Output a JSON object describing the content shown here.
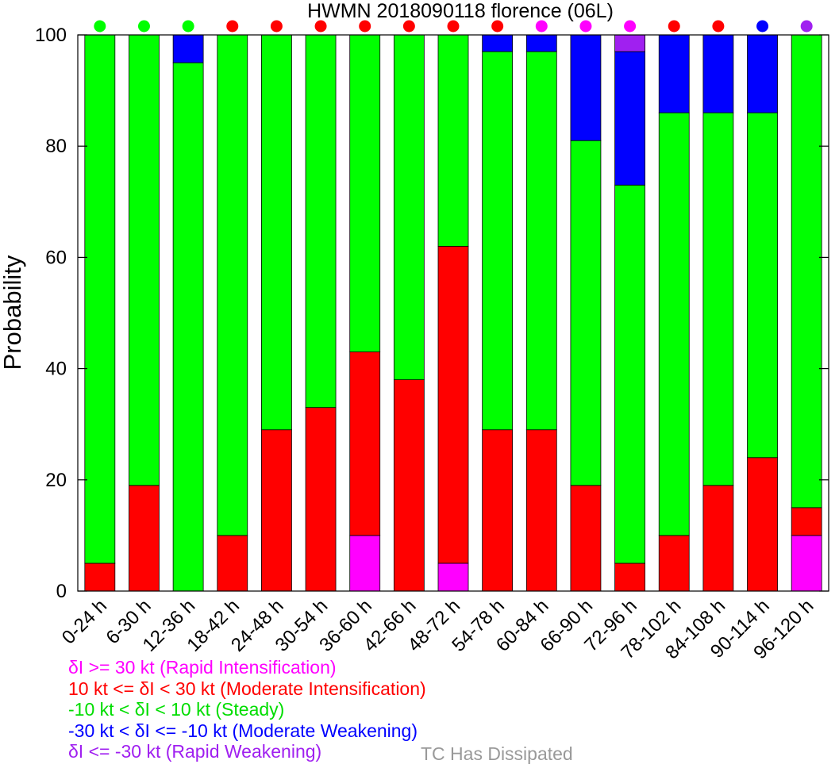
{
  "chart_data": {
    "type": "bar",
    "stacked": true,
    "title": "HWMN 2018090118 florence (06L)",
    "ylabel": "Probability",
    "ylim": [
      0,
      100
    ],
    "yticks": [
      0,
      20,
      40,
      60,
      80,
      100
    ],
    "categories": [
      "0-24 h",
      "6-30 h",
      "12-36 h",
      "18-42 h",
      "24-48 h",
      "30-54 h",
      "36-60 h",
      "42-66 h",
      "48-72 h",
      "54-78 h",
      "60-84 h",
      "66-90 h",
      "72-96 h",
      "78-102 h",
      "84-108 h",
      "90-114 h",
      "96-120 h"
    ],
    "series": [
      {
        "name": "δI >= 30 kt (Rapid Intensification)",
        "color": "#ff00ff",
        "values": [
          0,
          0,
          0,
          0,
          0,
          0,
          10,
          0,
          5,
          0,
          0,
          0,
          0,
          0,
          0,
          0,
          10
        ]
      },
      {
        "name": "10 kt <= δI < 30 kt (Moderate Intensification)",
        "color": "#ff0000",
        "values": [
          5,
          19,
          0,
          10,
          29,
          33,
          33,
          38,
          57,
          29,
          29,
          19,
          5,
          10,
          19,
          24,
          5
        ]
      },
      {
        "name": "-10 kt < δI < 10 kt (Steady)",
        "color": "#00ff00",
        "values": [
          95,
          81,
          95,
          90,
          71,
          67,
          57,
          62,
          38,
          68,
          68,
          62,
          68,
          76,
          67,
          62,
          85
        ]
      },
      {
        "name": "-30 kt < δI <= -10 kt (Moderate Weakening)",
        "color": "#0000ff",
        "values": [
          0,
          0,
          5,
          0,
          0,
          0,
          0,
          0,
          0,
          3,
          3,
          19,
          24,
          14,
          14,
          14,
          0
        ]
      },
      {
        "name": "δI <= -30 kt (Rapid Weakening)",
        "color": "#a020f0",
        "values": [
          0,
          0,
          0,
          0,
          0,
          0,
          0,
          0,
          0,
          0,
          0,
          0,
          3,
          0,
          0,
          0,
          0
        ]
      }
    ],
    "top_markers": [
      "#00ff00",
      "#00ff00",
      "#00ff00",
      "#ff0000",
      "#ff0000",
      "#ff0000",
      "#ff0000",
      "#ff0000",
      "#ff0000",
      "#ff0000",
      "#ff00ff",
      "#ff00ff",
      "#ff00ff",
      "#ff0000",
      "#ff0000",
      "#0000ff",
      "#a020f0"
    ],
    "dissipated_label": "TC Has Dissipated",
    "dissipated_color": "#999999"
  }
}
